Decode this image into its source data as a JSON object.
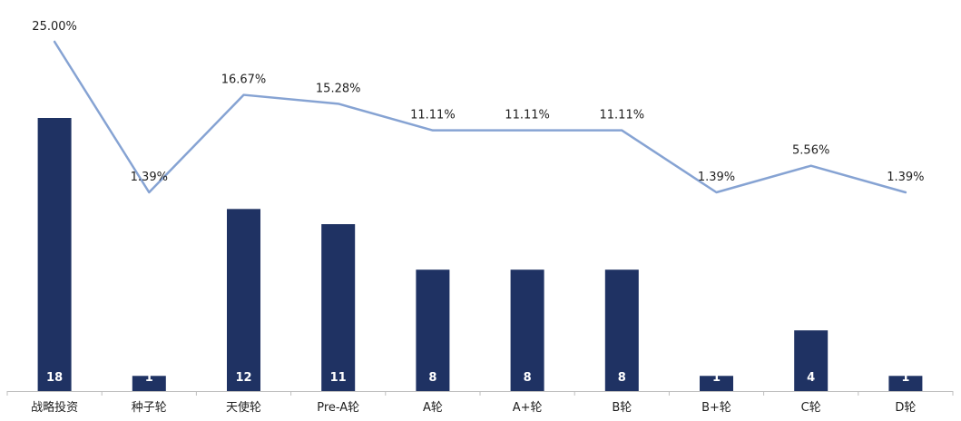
{
  "chart_data": {
    "type": "bar",
    "title": "",
    "xlabel": "",
    "ylabel": "",
    "categories": [
      "战略投资",
      "种子轮",
      "天使轮",
      "Pre-A轮",
      "A轮",
      "A+轮",
      "B轮",
      "B+轮",
      "C轮",
      "D轮"
    ],
    "series": [
      {
        "type": "bar",
        "values": [
          18,
          1,
          12,
          11,
          8,
          8,
          8,
          1,
          4,
          1
        ],
        "labels": [
          "18",
          "1",
          "12",
          "11",
          "8",
          "8",
          "8",
          "1",
          "4",
          "1"
        ],
        "color": "#1f3263"
      },
      {
        "type": "line",
        "values": [
          25.0,
          1.39,
          16.67,
          15.28,
          11.11,
          11.11,
          11.11,
          1.39,
          5.56,
          1.39
        ],
        "labels": [
          "25.00%",
          "1.39%",
          "16.67%",
          "15.28%",
          "11.11%",
          "11.11%",
          "11.11%",
          "1.39%",
          "5.56%",
          "1.39%"
        ],
        "color": "#86a3d3"
      }
    ],
    "bar_ylim": [
      0,
      18
    ],
    "line_ylim": [
      1.39,
      25.0
    ],
    "grid": false,
    "legend": "none"
  }
}
